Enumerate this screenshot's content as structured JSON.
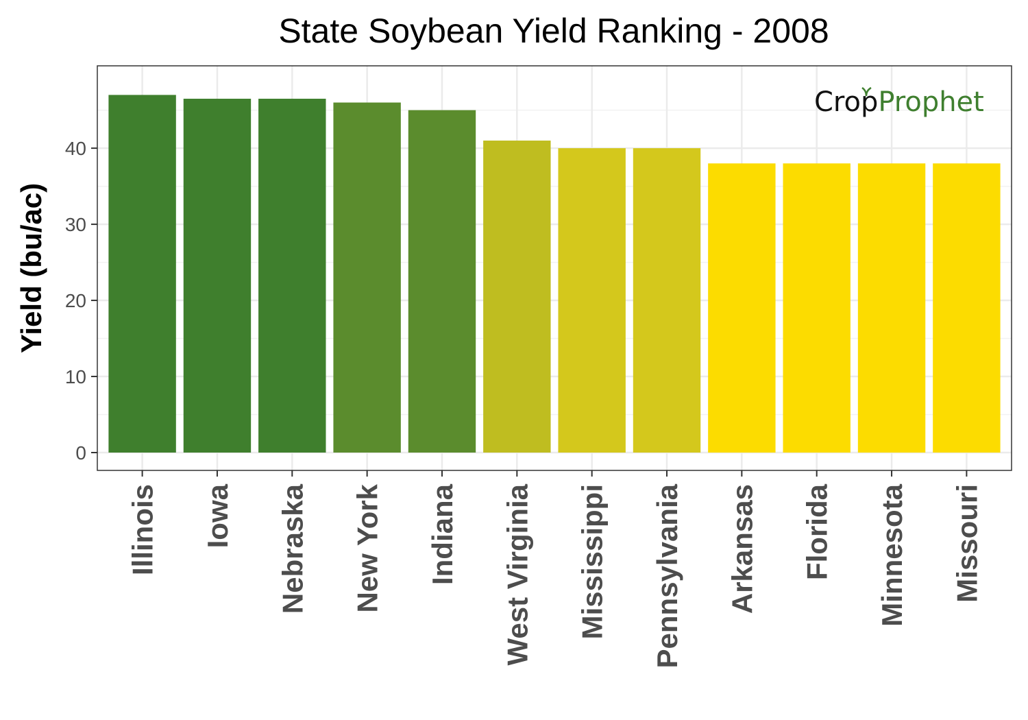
{
  "chart_data": {
    "type": "bar",
    "title": "State Soybean Yield Ranking - 2008",
    "ylabel": "Yield (bu/ac)",
    "xlabel": "",
    "categories": [
      "Illinois",
      "Iowa",
      "Nebraska",
      "New York",
      "Indiana",
      "West Virginia",
      "Mississippi",
      "Pennsylvania",
      "Arkansas",
      "Florida",
      "Minnesota",
      "Missouri"
    ],
    "values": [
      47,
      46.5,
      46.5,
      46,
      45,
      41,
      40,
      40,
      38,
      38,
      38,
      38
    ],
    "colors": [
      "#3f7f2d",
      "#3f7f2d",
      "#3f7f2d",
      "#5b8c2d",
      "#5b8c2d",
      "#bfbd20",
      "#d4c81c",
      "#d4c81c",
      "#fcdc00",
      "#fcdc00",
      "#fcdc00",
      "#fcdc00"
    ],
    "ylim": [
      0,
      48.3
    ],
    "yticks": [
      0,
      10,
      20,
      30,
      40
    ],
    "grid": true,
    "logo": {
      "part1": "Crop",
      "part2": "Prophet",
      "color1": "#111111",
      "color2": "#3f7f2f"
    }
  }
}
